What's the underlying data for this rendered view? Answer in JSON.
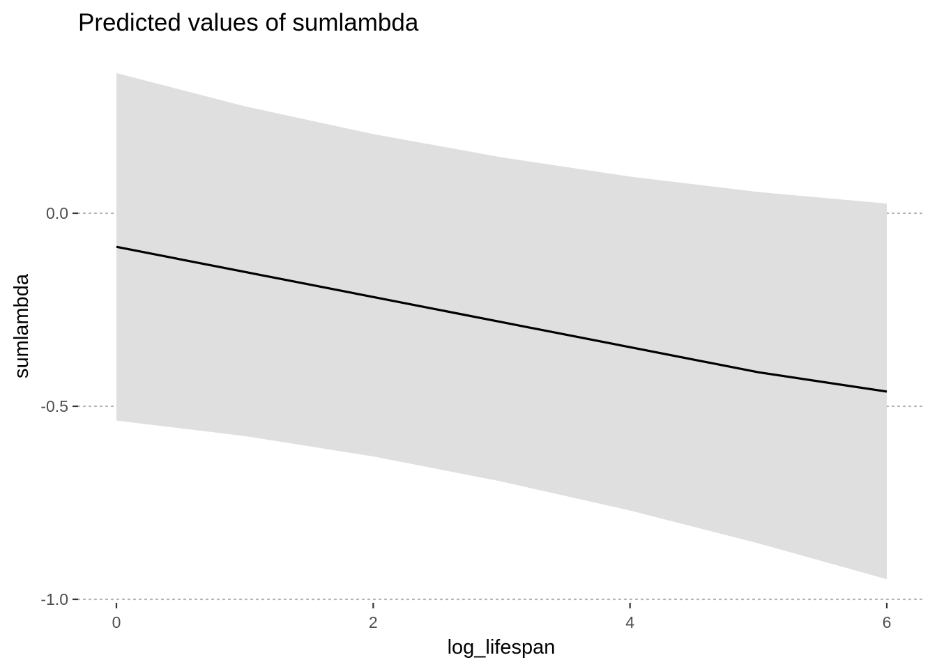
{
  "chart_data": {
    "type": "line",
    "title": "Predicted values of sumlambda",
    "xlabel": "log_lifespan",
    "ylabel": "sumlambda",
    "xlim": [
      -0.3,
      6.2
    ],
    "ylim": [
      -1.0,
      0.35
    ],
    "x_ticks": [
      0,
      2,
      4,
      6
    ],
    "x_tick_labels": [
      "0",
      "2",
      "4",
      "6"
    ],
    "y_ticks": [
      0.0,
      -0.5,
      -1.0
    ],
    "y_tick_labels": [
      "0.0",
      "-0.5",
      "-1.0"
    ],
    "grid": "horizontal dotted at y ticks",
    "legend": "none",
    "series": [
      {
        "x": [
          0,
          1,
          2,
          3,
          4,
          5,
          6
        ],
        "values": [
          -0.087,
          -0.152,
          -0.217,
          -0.282,
          -0.347,
          -0.412,
          -0.462
        ],
        "ci_lower": [
          -0.537,
          -0.577,
          -0.63,
          -0.695,
          -0.77,
          -0.855,
          -0.948
        ],
        "ci_upper": [
          0.363,
          0.277,
          0.205,
          0.145,
          0.095,
          0.055,
          0.025
        ],
        "color": "#000000",
        "band_color": "#dfdfdf"
      }
    ]
  }
}
